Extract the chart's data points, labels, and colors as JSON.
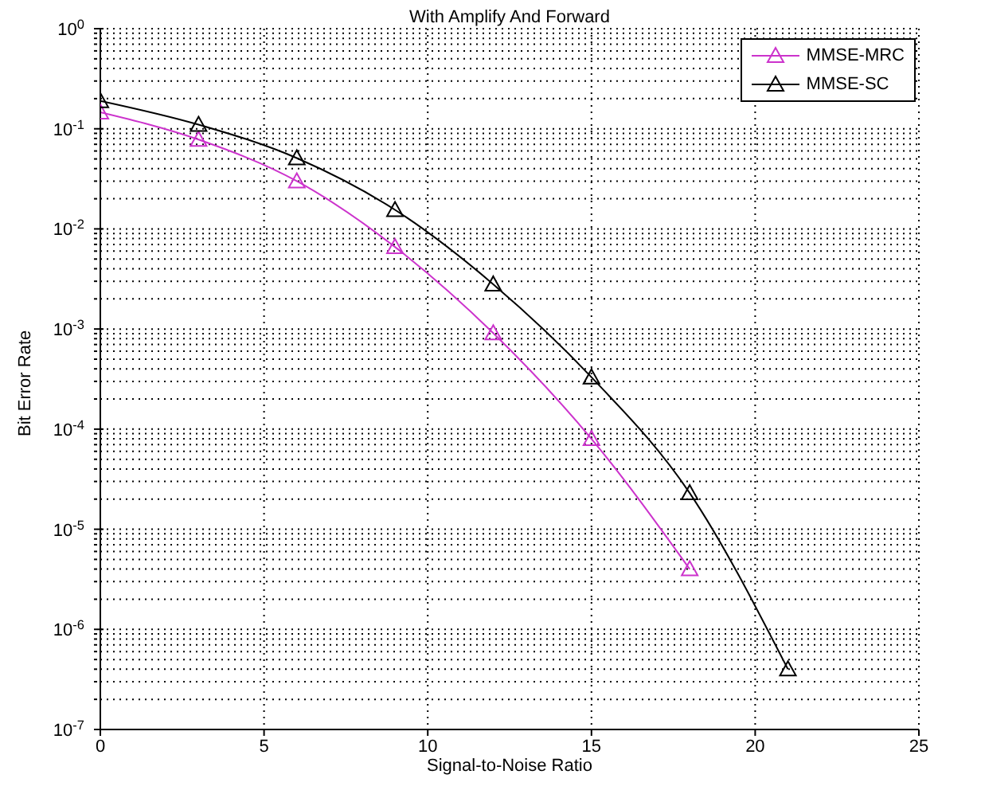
{
  "chart_data": {
    "type": "line",
    "title": "With Amplify And Forward",
    "xlabel": "Signal-to-Noise Ratio",
    "ylabel": "Bit Error Rate",
    "series": [
      {
        "name": "MMSE-MRC",
        "color": "#cc33cc",
        "x": [
          0,
          3,
          6,
          9,
          12,
          15,
          18
        ],
        "values": [
          0.146,
          0.078,
          0.03,
          0.0066,
          0.00091,
          8e-05,
          4e-06
        ]
      },
      {
        "name": "MMSE-SC",
        "color": "#000000",
        "x": [
          0,
          3,
          6,
          9,
          12,
          15,
          18,
          21
        ],
        "values": [
          0.19,
          0.11,
          0.051,
          0.0155,
          0.0028,
          0.00033,
          2.3e-05,
          4e-07
        ]
      }
    ],
    "log": "y",
    "xlim": [
      0,
      25
    ],
    "xticks": [
      0,
      5,
      10,
      15,
      20,
      25
    ],
    "ylim": [
      1e-07,
      1
    ],
    "yticks": [
      {
        "value": 1e-07,
        "label": "10$^{-7}$"
      },
      {
        "value": 1e-06,
        "label": "10$^{-6}$"
      },
      {
        "value": 1e-05,
        "label": "10$^{-5}$"
      },
      {
        "value": 0.0001,
        "label": "10$^{-4}$"
      },
      {
        "value": 0.001,
        "label": "10$^{-3}$"
      },
      {
        "value": 0.01,
        "label": "10$^{-2}$"
      },
      {
        "value": 0.1,
        "label": "10$^{-1}$"
      },
      {
        "value": 1,
        "label": "10$^{0}$"
      },
      {
        "value": 2e-07,
        "label": null
      },
      {
        "value": 3e-07,
        "label": null
      },
      {
        "value": 4e-07,
        "label": null
      },
      {
        "value": 5e-07,
        "label": null
      },
      {
        "value": 6e-07,
        "label": null
      },
      {
        "value": 7e-07,
        "label": null
      },
      {
        "value": 8e-07,
        "label": null
      },
      {
        "value": 9e-07,
        "label": null
      },
      {
        "value": 2e-06,
        "label": null
      },
      {
        "value": 3e-06,
        "label": null
      },
      {
        "value": 4e-06,
        "label": null
      },
      {
        "value": 5e-06,
        "label": null
      },
      {
        "value": 6e-06,
        "label": null
      },
      {
        "value": 7e-06,
        "label": null
      },
      {
        "value": 8e-06,
        "label": null
      },
      {
        "value": 9e-06,
        "label": null
      },
      {
        "value": 2e-05,
        "label": null
      },
      {
        "value": 3e-05,
        "label": null
      },
      {
        "value": 4e-05,
        "label": null
      },
      {
        "value": 5e-05,
        "label": null
      },
      {
        "value": 6e-05,
        "label": null
      },
      {
        "value": 7e-05,
        "label": null
      },
      {
        "value": 8e-05,
        "label": null
      },
      {
        "value": 9e-05,
        "label": null
      },
      {
        "value": 0.0002,
        "label": null
      },
      {
        "value": 0.0003,
        "label": null
      },
      {
        "value": 0.0004,
        "label": null
      },
      {
        "value": 0.0005,
        "label": null
      },
      {
        "value": 0.0006,
        "label": null
      },
      {
        "value": 0.0007,
        "label": null
      },
      {
        "value": 0.0008,
        "label": null
      },
      {
        "value": 0.0009,
        "label": null
      },
      {
        "value": 0.002,
        "label": null
      },
      {
        "value": 0.003,
        "label": null
      },
      {
        "value": 0.004,
        "label": null
      },
      {
        "value": 0.005,
        "label": null
      },
      {
        "value": 0.006,
        "label": null
      },
      {
        "value": 0.007,
        "label": null
      },
      {
        "value": 0.008,
        "label": null
      },
      {
        "value": 0.009,
        "label": null
      },
      {
        "value": 0.02,
        "label": null
      },
      {
        "value": 0.03,
        "label": null
      },
      {
        "value": 0.04,
        "label": null
      },
      {
        "value": 0.05,
        "label": null
      },
      {
        "value": 0.06,
        "label": null
      },
      {
        "value": 0.07,
        "label": null
      },
      {
        "value": 0.08,
        "label": null
      },
      {
        "value": 0.09,
        "label": null
      },
      {
        "value": 0.2,
        "label": null
      },
      {
        "value": 0.3,
        "label": null
      },
      {
        "value": 0.4,
        "label": null
      },
      {
        "value": 0.5,
        "label": null
      },
      {
        "value": 0.6,
        "label": null
      },
      {
        "value": 0.7,
        "label": null
      },
      {
        "value": 0.8,
        "label": null
      },
      {
        "value": 0.9,
        "label": null
      }
    ],
    "grid": true,
    "legend": "top right",
    "marker": "triangle",
    "line_style": "solid"
  }
}
